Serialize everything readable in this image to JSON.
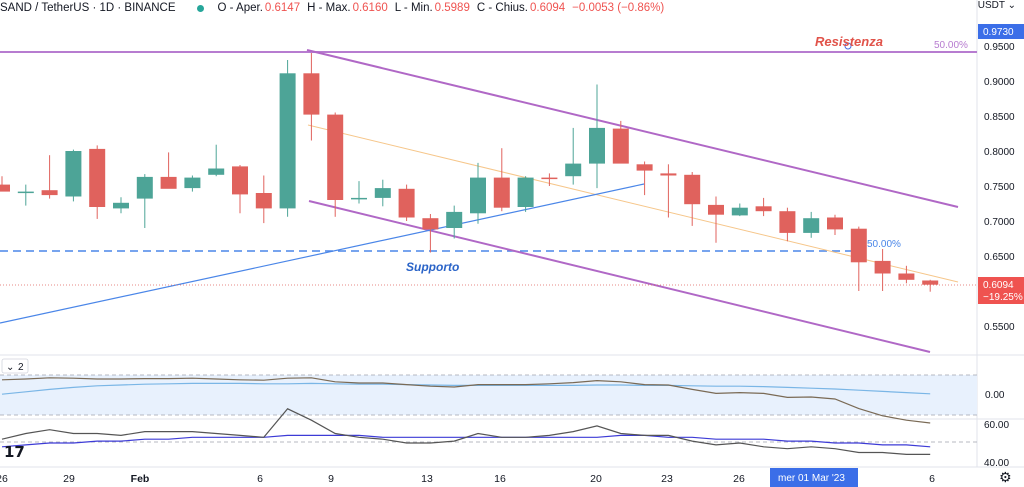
{
  "header": {
    "symbol": "SAND / TetherUS · 1D · BINANCE",
    "o_label": "O - Aper.",
    "o_val": "0.6147",
    "h_label": "H - Max.",
    "h_val": "0.6160",
    "l_label": "L - Min.",
    "l_val": "0.5989",
    "c_label": "C - Chius.",
    "c_val": "0.6094",
    "chg": "−0.0053 (−0.86%)"
  },
  "currency_label": "USDT",
  "colors": {
    "up": "#4da497",
    "down": "#e0625d",
    "channel": "#b068c6",
    "support": "#4a86e8",
    "resist": "#b77cd0",
    "text_red": "#e1534a",
    "text_blue": "#2b64c8"
  },
  "chart_data": {
    "type": "candlestick",
    "y_ticks": [
      "0.9500",
      "0.9000",
      "0.8500",
      "0.8000",
      "0.7500",
      "0.7000",
      "0.6500",
      "0.5500"
    ],
    "price_badges": {
      "top": "0.9730",
      "last": "0.6094",
      "last_pct": "−19.25%"
    },
    "x_ticks": [
      "26",
      "29",
      "Feb",
      "6",
      "9",
      "13",
      "16",
      "20",
      "23",
      "26",
      "6"
    ],
    "crosshair_label": "mer 01 Mar '23",
    "candles": [
      {
        "o": 0.752,
        "h": 0.764,
        "l": 0.744,
        "c": 0.742
      },
      {
        "o": 0.741,
        "h": 0.752,
        "l": 0.722,
        "c": 0.742
      },
      {
        "o": 0.744,
        "h": 0.794,
        "l": 0.732,
        "c": 0.737
      },
      {
        "o": 0.735,
        "h": 0.802,
        "l": 0.728,
        "c": 0.8
      },
      {
        "o": 0.803,
        "h": 0.808,
        "l": 0.703,
        "c": 0.72
      },
      {
        "o": 0.718,
        "h": 0.734,
        "l": 0.711,
        "c": 0.726
      },
      {
        "o": 0.732,
        "h": 0.767,
        "l": 0.69,
        "c": 0.763
      },
      {
        "o": 0.763,
        "h": 0.798,
        "l": 0.748,
        "c": 0.746
      },
      {
        "o": 0.747,
        "h": 0.765,
        "l": 0.742,
        "c": 0.762
      },
      {
        "o": 0.766,
        "h": 0.809,
        "l": 0.764,
        "c": 0.775
      },
      {
        "o": 0.778,
        "h": 0.78,
        "l": 0.711,
        "c": 0.738
      },
      {
        "o": 0.74,
        "h": 0.765,
        "l": 0.697,
        "c": 0.718
      },
      {
        "o": 0.718,
        "h": 0.93,
        "l": 0.706,
        "c": 0.911
      },
      {
        "o": 0.911,
        "h": 0.94,
        "l": 0.815,
        "c": 0.852
      },
      {
        "o": 0.852,
        "h": 0.855,
        "l": 0.706,
        "c": 0.73
      },
      {
        "o": 0.731,
        "h": 0.757,
        "l": 0.725,
        "c": 0.733
      },
      {
        "o": 0.733,
        "h": 0.759,
        "l": 0.721,
        "c": 0.747
      },
      {
        "o": 0.746,
        "h": 0.752,
        "l": 0.7,
        "c": 0.705
      },
      {
        "o": 0.704,
        "h": 0.71,
        "l": 0.655,
        "c": 0.688
      },
      {
        "o": 0.69,
        "h": 0.722,
        "l": 0.675,
        "c": 0.713
      },
      {
        "o": 0.711,
        "h": 0.783,
        "l": 0.696,
        "c": 0.762
      },
      {
        "o": 0.762,
        "h": 0.804,
        "l": 0.714,
        "c": 0.719
      },
      {
        "o": 0.72,
        "h": 0.764,
        "l": 0.713,
        "c": 0.762
      },
      {
        "o": 0.762,
        "h": 0.768,
        "l": 0.75,
        "c": 0.76
      },
      {
        "o": 0.764,
        "h": 0.833,
        "l": 0.752,
        "c": 0.782
      },
      {
        "o": 0.782,
        "h": 0.895,
        "l": 0.747,
        "c": 0.833
      },
      {
        "o": 0.832,
        "h": 0.843,
        "l": 0.783,
        "c": 0.782
      },
      {
        "o": 0.781,
        "h": 0.785,
        "l": 0.737,
        "c": 0.772
      },
      {
        "o": 0.768,
        "h": 0.781,
        "l": 0.705,
        "c": 0.765
      },
      {
        "o": 0.766,
        "h": 0.77,
        "l": 0.693,
        "c": 0.724
      },
      {
        "o": 0.723,
        "h": 0.735,
        "l": 0.669,
        "c": 0.709
      },
      {
        "o": 0.708,
        "h": 0.725,
        "l": 0.707,
        "c": 0.719
      },
      {
        "o": 0.721,
        "h": 0.733,
        "l": 0.707,
        "c": 0.714
      },
      {
        "o": 0.714,
        "h": 0.719,
        "l": 0.671,
        "c": 0.683
      },
      {
        "o": 0.683,
        "h": 0.713,
        "l": 0.676,
        "c": 0.704
      },
      {
        "o": 0.705,
        "h": 0.709,
        "l": 0.68,
        "c": 0.688
      },
      {
        "o": 0.689,
        "h": 0.692,
        "l": 0.6,
        "c": 0.641
      },
      {
        "o": 0.643,
        "h": 0.66,
        "l": 0.6,
        "c": 0.625
      },
      {
        "o": 0.625,
        "h": 0.636,
        "l": 0.611,
        "c": 0.616
      },
      {
        "o": 0.615,
        "h": 0.616,
        "l": 0.599,
        "c": 0.609
      }
    ],
    "annotations": {
      "resist_label": "Resistenza",
      "support_label": "Supporto",
      "pct_label": "50.00%"
    },
    "ind1": {
      "label": "2",
      "line": [
        0.38,
        0.4,
        0.43,
        0.42,
        0.4,
        0.4,
        0.41,
        0.41,
        0.42,
        0.4,
        0.38,
        0.37,
        0.42,
        0.43,
        0.33,
        0.3,
        0.3,
        0.26,
        0.22,
        0.2,
        0.26,
        0.26,
        0.26,
        0.28,
        0.31,
        0.36,
        0.33,
        0.26,
        0.25,
        0.14,
        0.04,
        0.06,
        0.04,
        -0.06,
        -0.05,
        -0.1,
        -0.34,
        -0.52,
        -0.63,
        -0.7
      ],
      "signal": [
        0.02,
        0.08,
        0.14,
        0.19,
        0.23,
        0.25,
        0.27,
        0.28,
        0.29,
        0.29,
        0.29,
        0.28,
        0.28,
        0.29,
        0.28,
        0.27,
        0.27,
        0.26,
        0.25,
        0.24,
        0.24,
        0.24,
        0.24,
        0.24,
        0.24,
        0.25,
        0.25,
        0.24,
        0.24,
        0.23,
        0.22,
        0.22,
        0.21,
        0.19,
        0.17,
        0.15,
        0.12,
        0.09,
        0.06,
        0.03
      ]
    },
    "ind2": {
      "ticks": [
        "60.00",
        "40.00"
      ],
      "line": [
        52,
        55,
        57,
        55,
        55,
        54,
        56,
        56,
        56,
        55,
        54,
        53,
        68,
        62,
        55,
        53,
        52,
        50,
        50,
        51,
        55,
        53,
        53,
        54,
        56,
        59,
        55,
        54,
        54,
        51,
        49,
        50,
        48,
        47,
        48,
        47,
        45,
        45,
        44,
        44
      ],
      "signal": [
        48,
        49,
        50,
        50,
        51,
        51,
        52,
        52,
        53,
        53,
        53,
        53,
        54,
        54,
        54,
        54,
        53,
        53,
        53,
        53,
        53,
        53,
        53,
        53,
        53,
        53,
        54,
        54,
        53,
        53,
        52,
        52,
        52,
        51,
        51,
        50,
        50,
        49,
        49,
        48
      ]
    }
  }
}
